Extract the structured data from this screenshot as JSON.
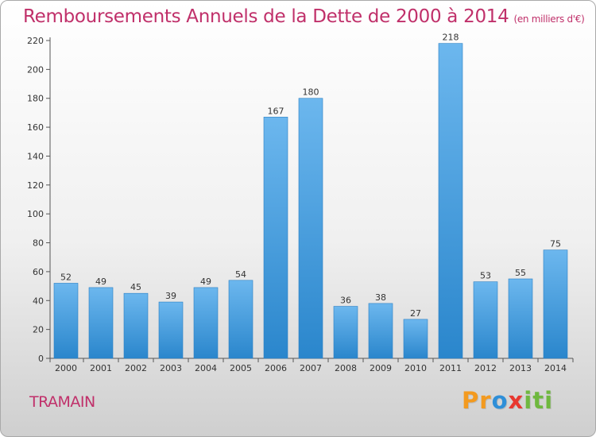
{
  "chart": {
    "title": "Remboursements Annuels de la Dette de 2000 à 2014",
    "subtitle": "(en milliers d'€)",
    "commune": "TRAMAIN"
  },
  "brand": {
    "letters": [
      "P",
      "r",
      "o",
      "x",
      "i",
      "t",
      "i"
    ],
    "colors": [
      "#f39a1f",
      "#f39a1f",
      "#2f8fd8",
      "#e8372f",
      "#6fb83f",
      "#6fb83f",
      "#6fb83f"
    ]
  },
  "colors": {
    "bar_light": "#6cb7ee",
    "bar_dark": "#2a86cc",
    "title": "#c0306a"
  },
  "chart_data": {
    "type": "bar",
    "title": "Remboursements Annuels de la Dette de 2000 à 2014",
    "subtitle": "(en milliers d'€)",
    "categories": [
      "2000",
      "2001",
      "2002",
      "2003",
      "2004",
      "2005",
      "2006",
      "2007",
      "2008",
      "2009",
      "2010",
      "2011",
      "2012",
      "2013",
      "2014"
    ],
    "values": [
      52,
      49,
      45,
      39,
      49,
      54,
      167,
      180,
      36,
      38,
      27,
      218,
      53,
      55,
      75
    ],
    "ylim": [
      0,
      220
    ],
    "yticks": [
      0,
      20,
      40,
      60,
      80,
      100,
      120,
      140,
      160,
      180,
      200,
      220
    ],
    "grid": false,
    "data_labels": true
  }
}
